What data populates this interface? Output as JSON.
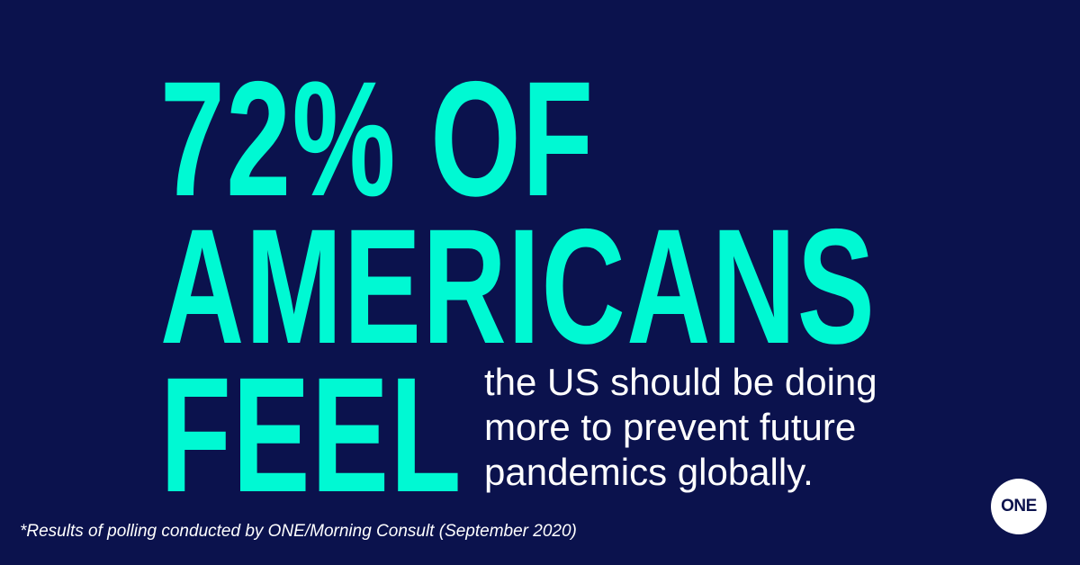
{
  "headline": {
    "line1": "72% OF",
    "line2": "AMERICANS",
    "line3": "FEEL"
  },
  "body_text": {
    "line1": "the US should be doing",
    "line2": "more to prevent future",
    "line3": "pandemics globally."
  },
  "footnote": "*Results of polling conducted by ONE/Morning Consult (September 2020)",
  "logo": {
    "text": "ONE"
  },
  "colors": {
    "background": "#0b124d",
    "headline": "#00f9d3",
    "body_text": "#ffffff",
    "logo_background": "#ffffff"
  }
}
